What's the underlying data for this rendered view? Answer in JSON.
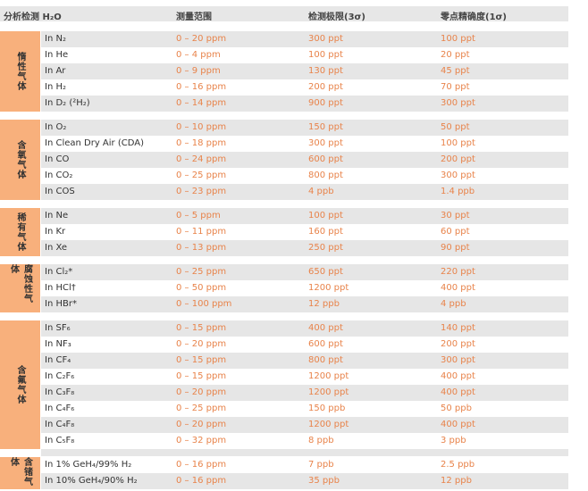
{
  "header": {
    "analyte": "分析检测 H₂O",
    "range": "测量范围",
    "lod": "检测极限(3σ)",
    "precision": "零点精确度(1σ)"
  },
  "colors": {
    "label_bg": "#f8b07c",
    "value_text": "#e8834a",
    "stripe": "#e6e6e6"
  },
  "groups": [
    {
      "label": "惰性气体",
      "rows": [
        [
          "In N₂",
          "0 – 20 ppm",
          "300 ppt",
          "100 ppt"
        ],
        [
          "In He",
          "0 – 4 ppm",
          "100 ppt",
          "20 ppt"
        ],
        [
          "In Ar",
          "0 – 9 ppm",
          "130 ppt",
          "45 ppt"
        ],
        [
          "In H₂",
          "0 – 16 ppm",
          "200 ppt",
          "70 ppt"
        ],
        [
          "In D₂ (²H₂)",
          "0 – 14 ppm",
          "900 ppt",
          "300 ppt"
        ]
      ]
    },
    {
      "label": "含氧气体",
      "rows": [
        [
          "In O₂",
          "0 – 10 ppm",
          "150 ppt",
          "50 ppt"
        ],
        [
          "In Clean Dry Air (CDA)",
          "0 – 18 ppm",
          "300 ppt",
          "100 ppt"
        ],
        [
          "In CO",
          "0 – 24 ppm",
          "600 ppt",
          "200 ppt"
        ],
        [
          "In CO₂",
          "0 – 25 ppm",
          "800 ppt",
          "300 ppt"
        ],
        [
          "In COS",
          "0 – 23 ppm",
          "4 ppb",
          "1.4 ppb"
        ]
      ]
    },
    {
      "label": "稀有气体",
      "rows": [
        [
          "In Ne",
          "0 – 5 ppm",
          "100 ppt",
          "30 ppt"
        ],
        [
          "In Kr",
          "0 – 11 ppm",
          "160 ppt",
          "60 ppt"
        ],
        [
          "In Xe",
          "0 – 13 ppm",
          "250 ppt",
          "90 ppt"
        ]
      ]
    },
    {
      "label": "腐蚀性气体",
      "rows": [
        [
          "In Cl₂*",
          "0 – 25 ppm",
          "650 ppt",
          "220 ppt"
        ],
        [
          "In HCl†",
          "0 – 50 ppm",
          "1200 ppt",
          "400 ppt"
        ],
        [
          "In HBr*",
          "0 – 100 ppm",
          "12 ppb",
          "4 ppb"
        ]
      ]
    },
    {
      "label": "含氟气体",
      "rows": [
        [
          "In SF₆",
          "0 – 15 ppm",
          "400 ppt",
          "140 ppt"
        ],
        [
          "In NF₃",
          "0 – 20 ppm",
          "600 ppt",
          "200 ppt"
        ],
        [
          "In CF₄",
          "0 – 15 ppm",
          "800 ppt",
          "300 ppt"
        ],
        [
          "In C₂F₆",
          "0 – 15 ppm",
          "1200 ppt",
          "400 ppt"
        ],
        [
          "In C₃F₈",
          "0 – 20 ppm",
          "1200 ppt",
          "400 ppt"
        ],
        [
          "In C₄F₆",
          "0 – 25 ppm",
          "150 ppb",
          "50 ppb"
        ],
        [
          "In C₄F₈",
          "0 – 20 ppm",
          "1200 ppt",
          "400 ppt"
        ],
        [
          "In C₅F₈",
          "0 – 32 ppm",
          "8 ppb",
          "3 ppb"
        ]
      ]
    },
    {
      "label": "含锗气体",
      "rows": [
        [
          "In 1% GeH₄/99% H₂",
          "0 – 16 ppm",
          "7 ppb",
          "2.5 ppb"
        ],
        [
          "In 10% GeH₄/90% H₂",
          "0 – 16 ppm",
          "35 ppb",
          "12 ppb"
        ]
      ]
    }
  ]
}
